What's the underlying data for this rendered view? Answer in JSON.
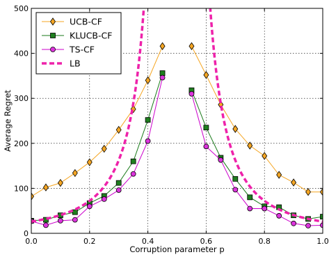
{
  "chart_data": {
    "type": "line",
    "title": "",
    "xlabel": "Corruption parameter p",
    "ylabel": "Average Regret",
    "xlim": [
      0.0,
      1.0
    ],
    "ylim": [
      0,
      500
    ],
    "xticks": [
      "0.0",
      "0.2",
      "0.4",
      "0.6",
      "0.8",
      "1.0"
    ],
    "yticks": [
      "0",
      "100",
      "200",
      "300",
      "400",
      "500"
    ],
    "grid": true,
    "legend_position": "top-left",
    "series": [
      {
        "name": "UCB-CF",
        "color": "#f5a623",
        "marker": "diamond",
        "marker_fill": "#f5a623",
        "x": [
          0.0,
          0.05,
          0.1,
          0.15,
          0.2,
          0.25,
          0.3,
          0.35,
          0.4,
          0.45,
          0.55,
          0.6,
          0.65,
          0.7,
          0.75,
          0.8,
          0.85,
          0.9,
          0.95,
          1.0
        ],
        "y": [
          82,
          102,
          112,
          134,
          158,
          188,
          230,
          276,
          340,
          416,
          416,
          352,
          286,
          232,
          195,
          172,
          130,
          113,
          92,
          92
        ]
      },
      {
        "name": "KLUCB-CF",
        "color": "#1a7a1a",
        "marker": "square",
        "marker_fill": "#1f7f1f",
        "x": [
          0.0,
          0.05,
          0.1,
          0.15,
          0.2,
          0.25,
          0.3,
          0.35,
          0.4,
          0.45,
          0.55,
          0.6,
          0.65,
          0.7,
          0.75,
          0.8,
          0.85,
          0.9,
          0.95,
          1.0
        ],
        "y": [
          28,
          30,
          40,
          47,
          67,
          83,
          112,
          160,
          252,
          356,
          318,
          235,
          168,
          121,
          80,
          60,
          58,
          40,
          32,
          37
        ]
      },
      {
        "name": "TS-CF",
        "color": "#cc00cc",
        "marker": "circle",
        "marker_fill": "#dd33dd",
        "x": [
          0.0,
          0.05,
          0.1,
          0.15,
          0.2,
          0.25,
          0.3,
          0.35,
          0.4,
          0.45,
          0.55,
          0.6,
          0.65,
          0.7,
          0.75,
          0.8,
          0.85,
          0.9,
          0.95,
          1.0
        ],
        "y": [
          27,
          18,
          28,
          30,
          60,
          76,
          96,
          132,
          205,
          346,
          310,
          193,
          163,
          97,
          55,
          55,
          39,
          22,
          17,
          18
        ]
      },
      {
        "name": "LB",
        "color": "#ee22aa",
        "marker": "none",
        "dashed": true,
        "c": 6.5
      }
    ]
  }
}
